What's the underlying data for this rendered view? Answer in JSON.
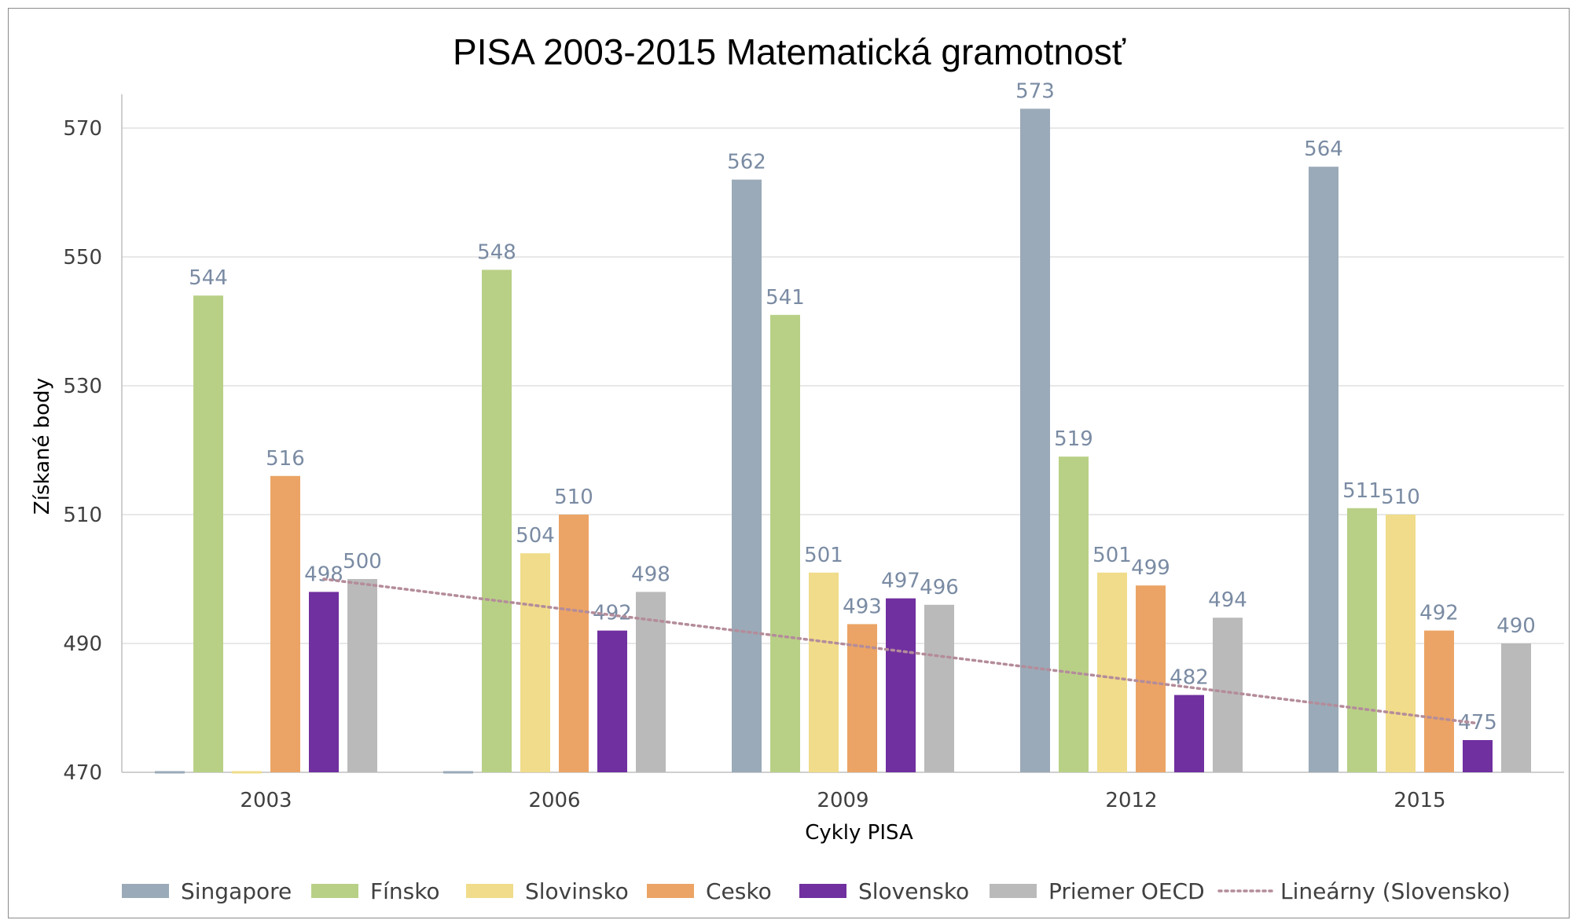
{
  "chart_data": {
    "type": "bar",
    "title": "PISA 2003-2015 Matematická gramotnosť",
    "xlabel": "Cykly PISA",
    "ylabel": "Získané body",
    "categories": [
      "2003",
      "2006",
      "2009",
      "2012",
      "2015"
    ],
    "ylim": [
      470,
      575
    ],
    "yticks": [
      470,
      490,
      510,
      530,
      550,
      570
    ],
    "grid": true,
    "legend_position": "bottom",
    "series": [
      {
        "name": "Singapore",
        "color": "#9aaab8",
        "values": [
          null,
          null,
          562,
          573,
          564
        ]
      },
      {
        "name": "Fínsko",
        "color": "#b8d086",
        "values": [
          544,
          548,
          541,
          519,
          511
        ]
      },
      {
        "name": "Slovinsko",
        "color": "#f0dc8a",
        "values": [
          null,
          504,
          501,
          501,
          510
        ]
      },
      {
        "name": "Cesko",
        "color": "#eba465",
        "values": [
          516,
          510,
          493,
          499,
          492
        ]
      },
      {
        "name": "Slovensko",
        "color": "#7030a0",
        "values": [
          498,
          492,
          497,
          482,
          475
        ]
      },
      {
        "name": "Priemer  OECD",
        "color": "#bababa",
        "values": [
          500,
          498,
          496,
          494,
          490
        ]
      }
    ],
    "trendline": {
      "name": "Lineárny  (Slovensko)",
      "of_series": "Slovensko",
      "style": "dotted",
      "color": "#b48c9a",
      "start_value": 500,
      "end_value": 477.6
    }
  }
}
